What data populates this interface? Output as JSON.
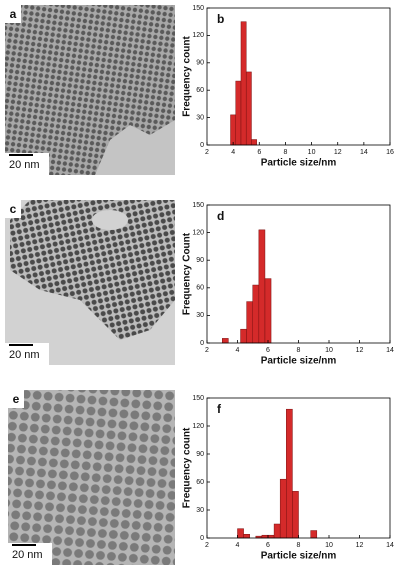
{
  "images": [
    {
      "panel_label": "a",
      "scale_bar": "20 nm"
    },
    {
      "panel_label": "c",
      "scale_bar": "20 nm"
    },
    {
      "panel_label": "e",
      "scale_bar": "20 nm"
    }
  ],
  "chart_data": [
    {
      "type": "histogram",
      "panel_label": "b",
      "y_label": "Frequency count",
      "x_label": "Particle size/nm",
      "color": "#d42a2a",
      "bins": [
        3.8,
        4.2,
        4.6,
        5.0,
        5.4,
        5.8
      ],
      "counts": [
        33,
        70,
        135,
        80,
        6
      ],
      "xlim": [
        2,
        16
      ],
      "xticks": [
        2,
        4,
        6,
        8,
        10,
        12,
        14,
        16
      ],
      "ylim": [
        0,
        150
      ],
      "yticks": [
        0,
        30,
        60,
        90,
        120,
        150
      ]
    },
    {
      "type": "histogram",
      "panel_label": "d",
      "y_label": "Frequency Count",
      "x_label": "Particle size/nm",
      "color": "#d42a2a",
      "bins": [
        3.0,
        3.4,
        3.8,
        4.2,
        4.6,
        5.0,
        5.4,
        5.8,
        6.2
      ],
      "counts": [
        5,
        0,
        0,
        15,
        45,
        63,
        123,
        70
      ],
      "xlim": [
        2,
        14
      ],
      "xticks": [
        2,
        4,
        6,
        8,
        10,
        12,
        14
      ],
      "ylim": [
        0,
        150
      ],
      "yticks": [
        0,
        30,
        60,
        90,
        120,
        150
      ]
    },
    {
      "type": "histogram",
      "panel_label": "f",
      "y_label": "Frequency count",
      "x_label": "Particle size/nm",
      "color": "#d42a2a",
      "bins": [
        4.0,
        4.4,
        4.8,
        5.2,
        5.6,
        6.0,
        6.4,
        6.8,
        7.2,
        7.6,
        8.0,
        8.4,
        8.8,
        9.2
      ],
      "counts": [
        10,
        4,
        0,
        2,
        3,
        3,
        15,
        63,
        138,
        50,
        0,
        0,
        8
      ],
      "xlim": [
        2,
        14
      ],
      "xticks": [
        2,
        4,
        6,
        8,
        10,
        12,
        14
      ],
      "ylim": [
        0,
        150
      ],
      "yticks": [
        0,
        30,
        60,
        90,
        120,
        150
      ]
    }
  ]
}
